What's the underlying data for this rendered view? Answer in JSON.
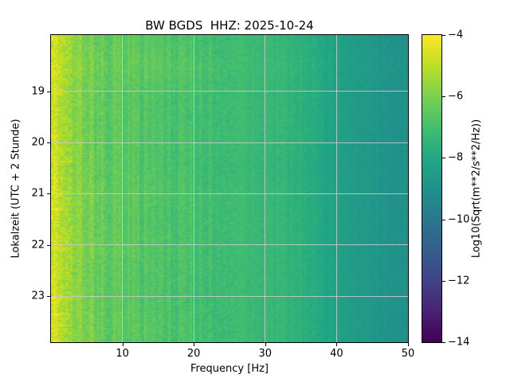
{
  "chart_data": {
    "type": "heatmap",
    "title": "BW BGDS  HHZ: 2025-10-24",
    "xlabel": "Frequency [Hz]",
    "ylabel": "Lokalzeit (UTC + 2 Stunde)",
    "colorbar_label": "Log10(Sqrt(m**2/s**2/Hz))",
    "colormap": "viridis",
    "grid": true,
    "x_range": [
      0,
      50
    ],
    "y_range": [
      17.9,
      23.9
    ],
    "color_range": [
      -14,
      -4
    ],
    "x_ticks": [
      10,
      20,
      30,
      40,
      50
    ],
    "y_ticks": [
      19,
      20,
      21,
      22,
      23
    ],
    "colorbar_ticks": [
      -4,
      -6,
      -8,
      -10,
      -12,
      -14
    ],
    "colorbar_tick_labels": [
      "−4",
      "−6",
      "−8",
      "−10",
      "−12",
      "−14"
    ],
    "freqs": [
      0.5,
      1,
      2,
      3,
      5,
      7,
      10,
      15,
      20,
      25,
      30,
      35,
      40,
      45,
      50
    ],
    "times": [
      18.0,
      18.5,
      19.0,
      19.5,
      20.0,
      20.5,
      21.0,
      21.5,
      22.0,
      22.5,
      23.0,
      23.5,
      24.0
    ],
    "values": [
      [
        -4.7,
        -5.0,
        -5.4,
        -5.7,
        -6.1,
        -6.4,
        -6.5,
        -6.7,
        -6.9,
        -7.1,
        -7.3,
        -7.6,
        -8.3,
        -8.7,
        -9.0
      ],
      [
        -4.6,
        -4.9,
        -5.3,
        -5.6,
        -6.0,
        -6.2,
        -6.4,
        -6.5,
        -6.7,
        -7.0,
        -7.2,
        -7.5,
        -8.2,
        -8.6,
        -8.9
      ],
      [
        -4.7,
        -5.0,
        -5.4,
        -5.8,
        -6.1,
        -6.4,
        -6.6,
        -6.8,
        -6.9,
        -7.1,
        -7.3,
        -7.6,
        -8.3,
        -8.7,
        -9.0
      ],
      [
        -4.8,
        -5.1,
        -5.5,
        -5.8,
        -6.2,
        -6.4,
        -6.6,
        -6.8,
        -7.0,
        -7.1,
        -7.3,
        -7.6,
        -8.3,
        -8.7,
        -9.0
      ],
      [
        -4.7,
        -5.0,
        -5.4,
        -5.7,
        -6.1,
        -6.4,
        -6.6,
        -6.8,
        -6.9,
        -7.1,
        -7.3,
        -7.6,
        -8.3,
        -8.7,
        -9.0
      ],
      [
        -4.7,
        -5.1,
        -5.5,
        -5.8,
        -6.1,
        -6.4,
        -6.6,
        -6.8,
        -7.0,
        -7.2,
        -7.4,
        -7.7,
        -8.4,
        -8.7,
        -9.0
      ],
      [
        -4.6,
        -5.0,
        -5.4,
        -5.7,
        -6.0,
        -6.3,
        -6.5,
        -6.7,
        -6.9,
        -7.1,
        -7.3,
        -7.6,
        -8.3,
        -8.7,
        -9.0
      ],
      [
        -4.7,
        -5.0,
        -5.4,
        -5.7,
        -6.1,
        -6.4,
        -6.6,
        -6.8,
        -6.9,
        -7.1,
        -7.3,
        -7.6,
        -8.3,
        -8.7,
        -9.0
      ],
      [
        -4.6,
        -4.9,
        -5.3,
        -5.6,
        -6.0,
        -6.3,
        -6.5,
        -6.7,
        -6.9,
        -7.1,
        -7.3,
        -7.6,
        -8.3,
        -8.7,
        -9.0
      ],
      [
        -4.7,
        -5.0,
        -5.4,
        -5.7,
        -6.1,
        -6.4,
        -6.6,
        -6.8,
        -6.9,
        -7.1,
        -7.3,
        -7.6,
        -8.3,
        -8.7,
        -9.0
      ],
      [
        -4.7,
        -5.0,
        -5.4,
        -5.7,
        -6.1,
        -6.4,
        -6.6,
        -6.8,
        -7.0,
        -7.1,
        -7.3,
        -7.6,
        -8.3,
        -8.7,
        -9.0
      ],
      [
        -4.6,
        -5.0,
        -5.4,
        -5.7,
        -6.0,
        -6.3,
        -6.5,
        -6.7,
        -6.9,
        -7.1,
        -7.3,
        -7.6,
        -8.3,
        -8.7,
        -9.0
      ],
      [
        -4.7,
        -5.0,
        -5.4,
        -5.7,
        -6.1,
        -6.4,
        -6.6,
        -6.8,
        -6.9,
        -7.1,
        -7.3,
        -7.6,
        -8.3,
        -8.7,
        -9.0
      ]
    ]
  },
  "colors": {
    "background": "#ffffff",
    "grid": "#cdcdcd",
    "text": "#000000",
    "colormap_min": "#440154",
    "colormap_max": "#fde725"
  }
}
